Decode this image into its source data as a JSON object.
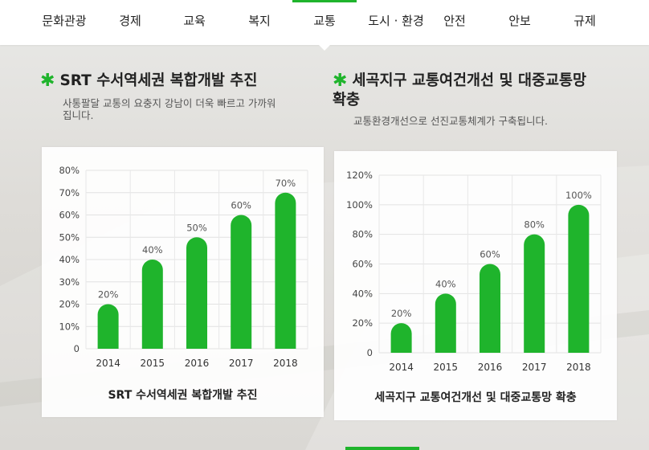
{
  "nav": {
    "items": [
      {
        "label": "문화관광"
      },
      {
        "label": "경제"
      },
      {
        "label": "교육"
      },
      {
        "label": "복지"
      },
      {
        "label": "교통",
        "active": true
      },
      {
        "label": "도시 · 환경"
      },
      {
        "label": "안전"
      },
      {
        "label": "안보"
      },
      {
        "label": "규제"
      }
    ]
  },
  "colors": {
    "accent": "#1fb42c",
    "bar": "#1fb42c"
  },
  "left": {
    "title": "SRT 수서역세권 복합개발 추진",
    "desc_line1": "사통팔달 교통의 요충지 강남이 더욱 빠르고 가까워",
    "desc_line2": "집니다."
  },
  "right": {
    "title_line1": "세곡지구 교통여건개선 및 대중교통망",
    "title_line2": "확충",
    "desc": "교통환경개선으로 선진교통체계가 구축됩니다."
  },
  "chart_data": [
    {
      "type": "bar",
      "title": "SRT 수서역세권 복합개발 추진",
      "categories": [
        "2014",
        "2015",
        "2016",
        "2017",
        "2018"
      ],
      "values": [
        20,
        40,
        50,
        60,
        70
      ],
      "value_labels": [
        "20%",
        "40%",
        "50%",
        "60%",
        "70%"
      ],
      "yticks": [
        "0",
        "10%",
        "20%",
        "30%",
        "40%",
        "50%",
        "60%",
        "70%",
        "80%"
      ],
      "ylim": [
        0,
        80
      ],
      "grid": true,
      "xlabel": "",
      "ylabel": ""
    },
    {
      "type": "bar",
      "title": "세곡지구 교통여건개선 및 대중교통망 확충",
      "categories": [
        "2014",
        "2015",
        "2016",
        "2017",
        "2018"
      ],
      "values": [
        20,
        40,
        60,
        80,
        100
      ],
      "value_labels": [
        "20%",
        "40%",
        "60%",
        "80%",
        "100%"
      ],
      "yticks": [
        "0",
        "20%",
        "40%",
        "60%",
        "80%",
        "100%",
        "120%"
      ],
      "ylim": [
        0,
        120
      ],
      "grid": true,
      "xlabel": "",
      "ylabel": ""
    }
  ]
}
